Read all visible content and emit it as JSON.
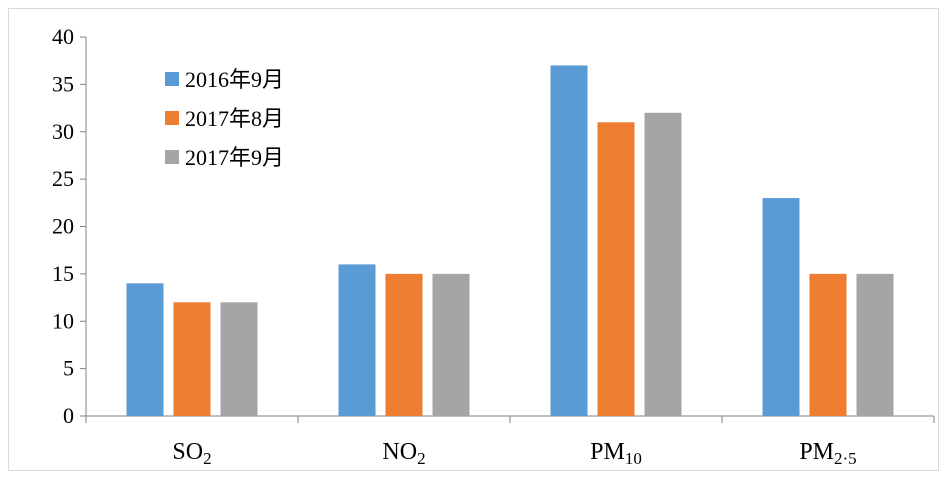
{
  "chart_data": {
    "type": "bar",
    "categories": [
      {
        "base": "SO",
        "sub": "2"
      },
      {
        "base": "NO",
        "sub": "2"
      },
      {
        "base": "PM",
        "sub": "10"
      },
      {
        "base": "PM",
        "sub": "2·5"
      }
    ],
    "series": [
      {
        "name": "2016年9月",
        "color": "#5b9bd5",
        "values": [
          14,
          16,
          37,
          23
        ]
      },
      {
        "name": "2017年8月",
        "color": "#ed7d31",
        "values": [
          12,
          15,
          31,
          15
        ]
      },
      {
        "name": "2017年9月",
        "color": "#a5a5a5",
        "values": [
          12,
          15,
          32,
          15
        ]
      }
    ],
    "title": "",
    "xlabel": "",
    "ylabel": "",
    "ylim": [
      0,
      40
    ],
    "yticks": [
      0,
      5,
      10,
      15,
      20,
      25,
      30,
      35,
      40
    ],
    "grid": false,
    "legend_position": "top-left"
  }
}
